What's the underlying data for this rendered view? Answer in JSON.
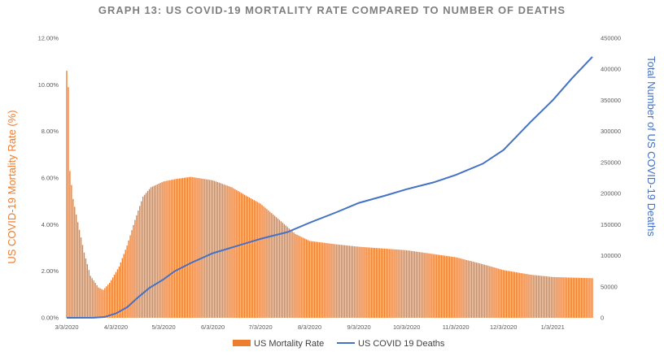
{
  "chart_data": {
    "type": "bar+line",
    "title": "GRAPH 13: US COVID-19 MORTALITY RATE COMPARED TO NUMBER OF DEATHS",
    "y_left_label": "US COVID-19 Mortality Rate (%)",
    "y_right_label": "Total Number of US COVID-19 Deaths",
    "y_left_ticks": [
      "0.00%",
      "2.00%",
      "4.00%",
      "6.00%",
      "8.00%",
      "10.00%",
      "12.00%"
    ],
    "y_left_range": [
      0,
      12
    ],
    "y_right_ticks": [
      "0",
      "50000",
      "100000",
      "150000",
      "200000",
      "250000",
      "300000",
      "350000",
      "400000",
      "450000"
    ],
    "y_right_range": [
      0,
      450000
    ],
    "x_tick_labels": [
      "3/3/2020",
      "4/3/2020",
      "5/3/2020",
      "6/3/2020",
      "7/3/2020",
      "8/3/2020",
      "9/3/2020",
      "10/3/2020",
      "11/3/2020",
      "12/3/2020",
      "1/3/2021"
    ],
    "x_range": [
      "3/3/2020",
      "1/28/2021"
    ],
    "grid": false,
    "legend_position": "bottom",
    "series": [
      {
        "name": "US Mortality Rate",
        "type": "bar",
        "axis": "left",
        "color": "#ED7D31",
        "points": [
          [
            "3/3/2020",
            10.6
          ],
          [
            "3/4/2020",
            9.9
          ],
          [
            "3/5/2020",
            6.3
          ],
          [
            "3/7/2020",
            5.1
          ],
          [
            "3/10/2020",
            4.1
          ],
          [
            "3/14/2020",
            2.8
          ],
          [
            "3/18/2020",
            1.8
          ],
          [
            "3/23/2020",
            1.3
          ],
          [
            "3/26/2020",
            1.2
          ],
          [
            "3/30/2020",
            1.5
          ],
          [
            "4/5/2020",
            2.2
          ],
          [
            "4/10/2020",
            3.1
          ],
          [
            "4/15/2020",
            4.2
          ],
          [
            "4/20/2020",
            5.2
          ],
          [
            "4/25/2020",
            5.6
          ],
          [
            "5/3/2020",
            5.85
          ],
          [
            "5/10/2020",
            5.95
          ],
          [
            "5/20/2020",
            6.05
          ],
          [
            "6/3/2020",
            5.9
          ],
          [
            "6/15/2020",
            5.6
          ],
          [
            "6/25/2020",
            5.2
          ],
          [
            "7/3/2020",
            4.9
          ],
          [
            "7/15/2020",
            4.2
          ],
          [
            "7/25/2020",
            3.6
          ],
          [
            "8/3/2020",
            3.3
          ],
          [
            "8/20/2020",
            3.15
          ],
          [
            "9/3/2020",
            3.05
          ],
          [
            "10/3/2020",
            2.9
          ],
          [
            "11/3/2020",
            2.6
          ],
          [
            "11/20/2020",
            2.3
          ],
          [
            "12/3/2020",
            2.05
          ],
          [
            "12/20/2020",
            1.85
          ],
          [
            "1/3/2021",
            1.75
          ],
          [
            "1/28/2021",
            1.7
          ]
        ]
      },
      {
        "name": "US COVID 19 Deaths",
        "type": "line",
        "axis": "right",
        "color": "#4472C4",
        "points": [
          [
            "3/3/2020",
            0
          ],
          [
            "3/20/2020",
            100
          ],
          [
            "3/27/2020",
            1500
          ],
          [
            "4/3/2020",
            7000
          ],
          [
            "4/10/2020",
            17000
          ],
          [
            "4/17/2020",
            33000
          ],
          [
            "4/24/2020",
            48000
          ],
          [
            "5/3/2020",
            62000
          ],
          [
            "5/10/2020",
            75000
          ],
          [
            "5/20/2020",
            88000
          ],
          [
            "6/3/2020",
            104000
          ],
          [
            "6/20/2020",
            117000
          ],
          [
            "7/3/2020",
            127000
          ],
          [
            "7/20/2020",
            138000
          ],
          [
            "8/3/2020",
            153000
          ],
          [
            "8/20/2020",
            170000
          ],
          [
            "9/3/2020",
            185000
          ],
          [
            "9/20/2020",
            197000
          ],
          [
            "10/3/2020",
            207000
          ],
          [
            "10/20/2020",
            218000
          ],
          [
            "11/3/2020",
            230000
          ],
          [
            "11/20/2020",
            248000
          ],
          [
            "12/3/2020",
            270000
          ],
          [
            "12/20/2020",
            315000
          ],
          [
            "1/3/2021",
            350000
          ],
          [
            "1/15/2021",
            385000
          ],
          [
            "1/28/2021",
            420000
          ]
        ]
      }
    ]
  }
}
